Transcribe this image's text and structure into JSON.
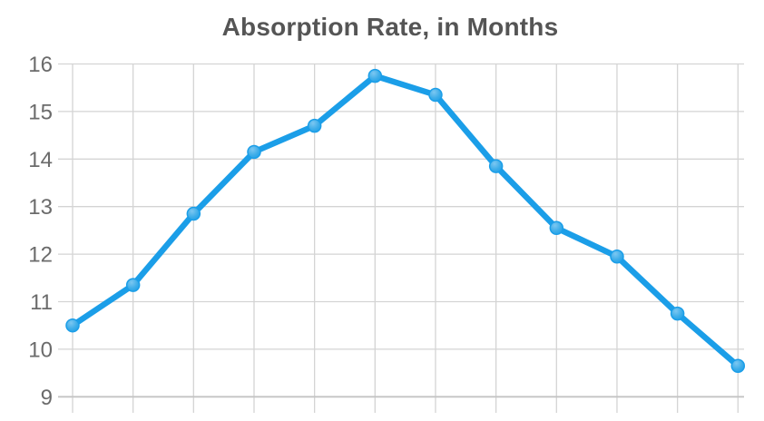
{
  "chart_data": {
    "type": "line",
    "title": "Absorption Rate, in Months",
    "xlabel": "",
    "ylabel": "",
    "categories": [
      "",
      "",
      "",
      "",
      "",
      "",
      "",
      "",
      "",
      "",
      "",
      ""
    ],
    "values": [
      10.5,
      11.35,
      12.85,
      14.15,
      14.7,
      15.75,
      15.35,
      13.85,
      12.55,
      11.95,
      10.75,
      9.65
    ],
    "num_points": 12,
    "ylim": [
      9,
      16
    ],
    "y_ticks": [
      16,
      15,
      14,
      13,
      12,
      11,
      10,
      9
    ],
    "grid": "both",
    "legend": "none",
    "x_axis_labels_visible": false,
    "line_color": "#1b9ee8",
    "marker_color": "#1b9ee8",
    "marker_highlight_color": "#7cc7f1",
    "grid_color": "#d4d4d4",
    "bottom_line_color": "#c4c4c4",
    "tick_label_color": "#6b6b6b",
    "title_color": "#555555",
    "background_color": "#ffffff"
  }
}
